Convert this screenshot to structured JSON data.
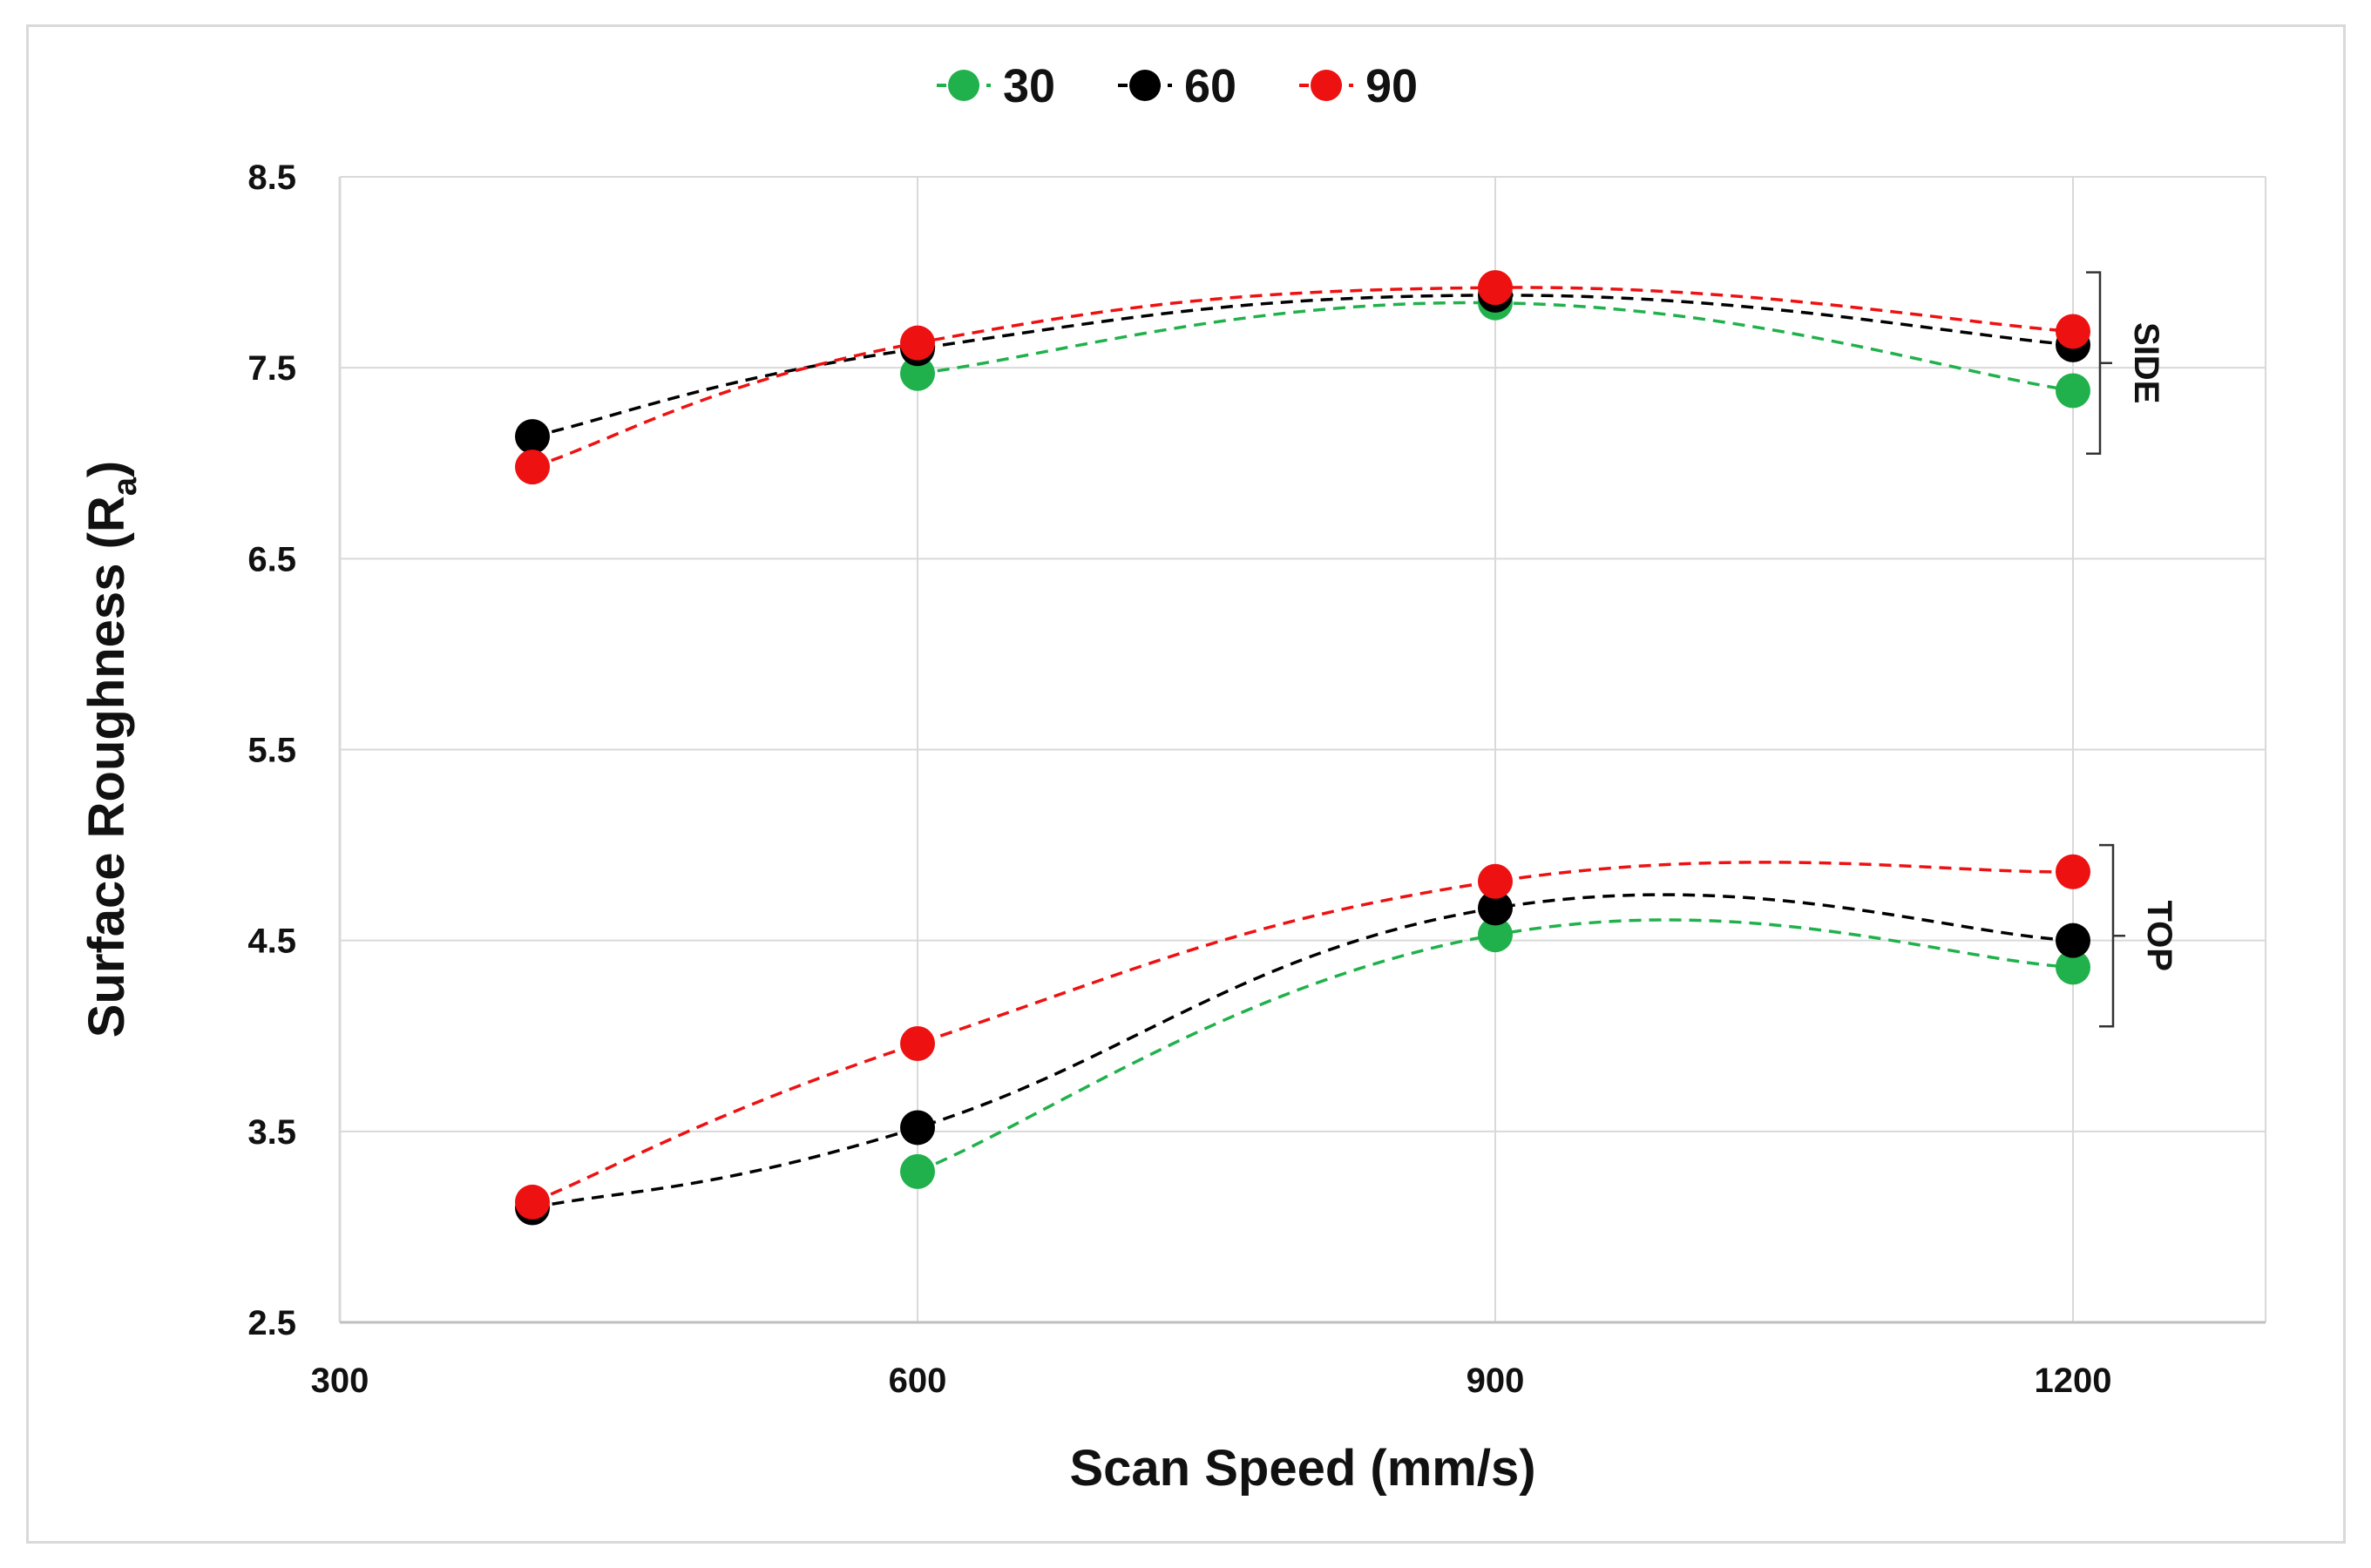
{
  "chart_data": {
    "type": "line",
    "title": "",
    "xlabel": "Scan Speed (mm/s)",
    "ylabel_main": "Surface Roughness (R",
    "ylabel_sub": "a",
    "ylabel_close": ")",
    "xlim": [
      300,
      1300
    ],
    "ylim": [
      2.5,
      8.5
    ],
    "xticks": [
      300,
      600,
      900,
      1200
    ],
    "xtick_labels": [
      "300",
      "600",
      "900",
      "1200"
    ],
    "yticks": [
      2.5,
      3.5,
      4.5,
      5.5,
      6.5,
      7.5,
      8.5
    ],
    "ytick_labels": [
      "2.5",
      "3.5",
      "4.5",
      "5.5",
      "6.5",
      "7.5",
      "8.5"
    ],
    "grid": true,
    "legend_position": "top-center",
    "x": [
      400,
      600,
      900,
      1200
    ],
    "series": [
      {
        "name": "30",
        "color": "#21b14c",
        "group": "SIDE",
        "values": [
          null,
          7.47,
          7.84,
          7.38
        ]
      },
      {
        "name": "60",
        "color": "#000000",
        "group": "SIDE",
        "values": [
          7.14,
          7.6,
          7.88,
          7.62
        ]
      },
      {
        "name": "90",
        "color": "#ee1111",
        "group": "SIDE",
        "values": [
          6.98,
          7.63,
          7.92,
          7.69
        ]
      },
      {
        "name": "30",
        "color": "#21b14c",
        "group": "TOP",
        "values": [
          null,
          3.29,
          4.53,
          4.36
        ]
      },
      {
        "name": "60",
        "color": "#000000",
        "group": "TOP",
        "values": [
          3.1,
          3.52,
          4.67,
          4.5
        ]
      },
      {
        "name": "90",
        "color": "#ee1111",
        "group": "TOP",
        "values": [
          3.13,
          3.96,
          4.81,
          4.86
        ]
      }
    ],
    "legend": [
      {
        "label": "30",
        "color": "#21b14c"
      },
      {
        "label": "60",
        "color": "#000000"
      },
      {
        "label": "90",
        "color": "#ee1111"
      }
    ],
    "annotations": [
      {
        "text": "SIDE",
        "y_range": [
          7.05,
          8.0
        ]
      },
      {
        "text": "TOP",
        "y_range": [
          4.05,
          5.0
        ]
      }
    ]
  }
}
